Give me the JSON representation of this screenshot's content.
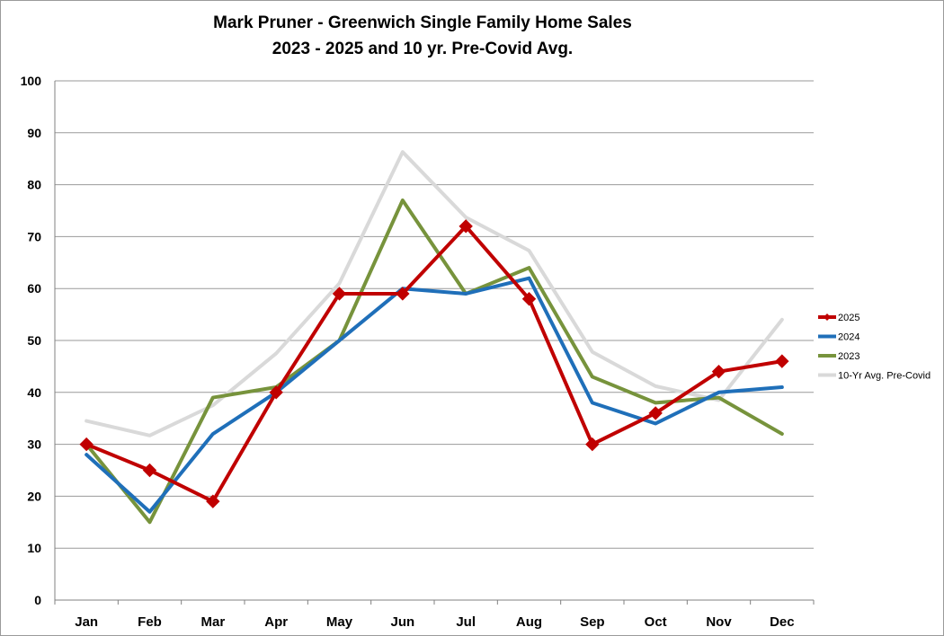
{
  "chart_data": {
    "type": "line",
    "title": "Mark Pruner - Greenwich Single Family Home Sales",
    "subtitle": "2023 - 2025 and 10 yr. Pre-Covid Avg.",
    "xlabel": "",
    "ylabel": "",
    "categories": [
      "Jan",
      "Feb",
      "Mar",
      "Apr",
      "May",
      "Jun",
      "Jul",
      "Aug",
      "Sep",
      "Oct",
      "Nov",
      "Dec"
    ],
    "ylim": [
      0,
      100
    ],
    "yticks": [
      0,
      10,
      20,
      30,
      40,
      50,
      60,
      70,
      80,
      90,
      100
    ],
    "grid": true,
    "legend_position": "right",
    "series": [
      {
        "name": "2025",
        "color": "#c00000",
        "marker": "diamond",
        "values": [
          30,
          25,
          19,
          40,
          59,
          59,
          72,
          58,
          30,
          36,
          44,
          46
        ]
      },
      {
        "name": "2024",
        "color": "#1f6fb9",
        "marker": "none",
        "values": [
          28,
          17,
          32,
          40,
          50,
          60,
          59,
          62,
          38,
          34,
          40,
          41
        ]
      },
      {
        "name": "2023",
        "color": "#77933c",
        "marker": "none",
        "values": [
          30,
          15,
          39,
          41,
          50,
          77,
          59,
          64,
          43,
          38,
          39,
          32
        ]
      },
      {
        "name": "10-Yr Avg. Pre-Covid",
        "color": "#d9d9d9",
        "marker": "none",
        "values": [
          34.5,
          31.7,
          37.5,
          47.5,
          61,
          86.3,
          73.7,
          67.3,
          47.8,
          41.2,
          38.5,
          54
        ]
      }
    ]
  }
}
